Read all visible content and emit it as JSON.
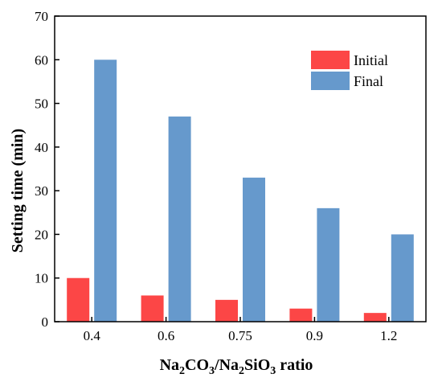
{
  "chart_data": {
    "type": "bar",
    "categories": [
      "0.4",
      "0.6",
      "0.75",
      "0.9",
      "1.2"
    ],
    "series": [
      {
        "name": "Initial",
        "values": [
          10,
          6,
          5,
          3,
          2
        ],
        "color": "#fc4646"
      },
      {
        "name": "Final",
        "values": [
          60,
          47,
          33,
          26,
          20
        ],
        "color": "#6699cc"
      }
    ],
    "ylabel": "Setting time (min)",
    "xlabel": {
      "parts": [
        "Na",
        "2",
        "CO",
        "3",
        "/Na",
        "2",
        "SiO",
        "3",
        " ratio"
      ]
    },
    "ylim": [
      0,
      70
    ],
    "yticks": [
      "0",
      "10",
      "20",
      "30",
      "40",
      "50",
      "60",
      "70"
    ],
    "grid": false,
    "legend_position": "top-right"
  }
}
